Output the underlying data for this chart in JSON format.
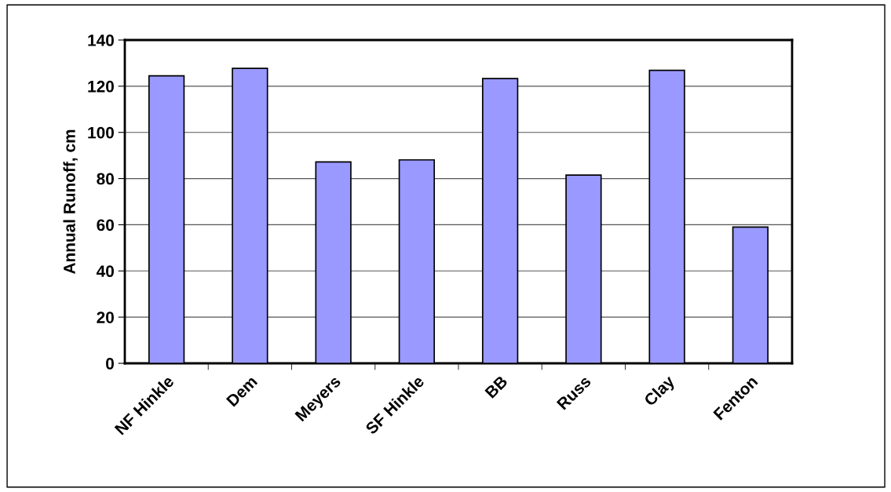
{
  "chart_data": {
    "type": "bar",
    "ylabel": "Annual Runoff, cm",
    "categories": [
      "NF Hinkle",
      "Dem",
      "Meyers",
      "SF Hinkle",
      "BB",
      "Russ",
      "Clay",
      "Fenton"
    ],
    "values": [
      124.5,
      127.7,
      87.2,
      88.1,
      123.3,
      81.5,
      126.9,
      59.0
    ],
    "color": "#9999ff",
    "ylim": [
      0,
      140
    ],
    "yticks": [
      0,
      20,
      40,
      60,
      80,
      100,
      120,
      140
    ],
    "grid": "y"
  }
}
